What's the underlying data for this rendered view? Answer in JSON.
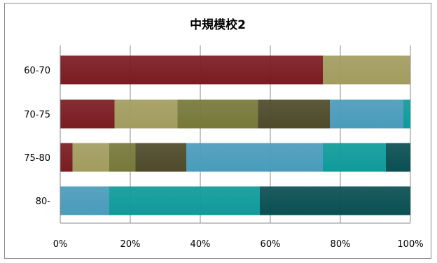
{
  "chart_data": {
    "type": "bar",
    "orientation": "horizontal",
    "stacked": "percent",
    "title": "中規模校2",
    "xlabel": "",
    "ylabel": "",
    "xlim": [
      0,
      100
    ],
    "x_ticks": [
      "0%",
      "20%",
      "40%",
      "60%",
      "80%",
      "100%"
    ],
    "categories": [
      "60-70",
      "70-75",
      "75-80",
      "80-"
    ],
    "grid": true,
    "legend": "none",
    "segments": [
      {
        "color": "#7a1c22",
        "values": [
          75,
          15.5,
          3.5,
          0
        ]
      },
      {
        "color": "#a29c60",
        "values": [
          25,
          18,
          10.5,
          0
        ]
      },
      {
        "color": "#77783a",
        "values": [
          0,
          23,
          7.5,
          0
        ]
      },
      {
        "color": "#4e4a2a",
        "values": [
          0,
          20.5,
          14.5,
          0
        ]
      },
      {
        "color": "#4a9bbb",
        "values": [
          0,
          21,
          39,
          14
        ]
      },
      {
        "color": "#0f9a9a",
        "values": [
          0,
          2,
          18,
          43
        ]
      },
      {
        "color": "#0a4f52",
        "values": [
          0,
          0,
          7,
          43
        ]
      }
    ]
  }
}
